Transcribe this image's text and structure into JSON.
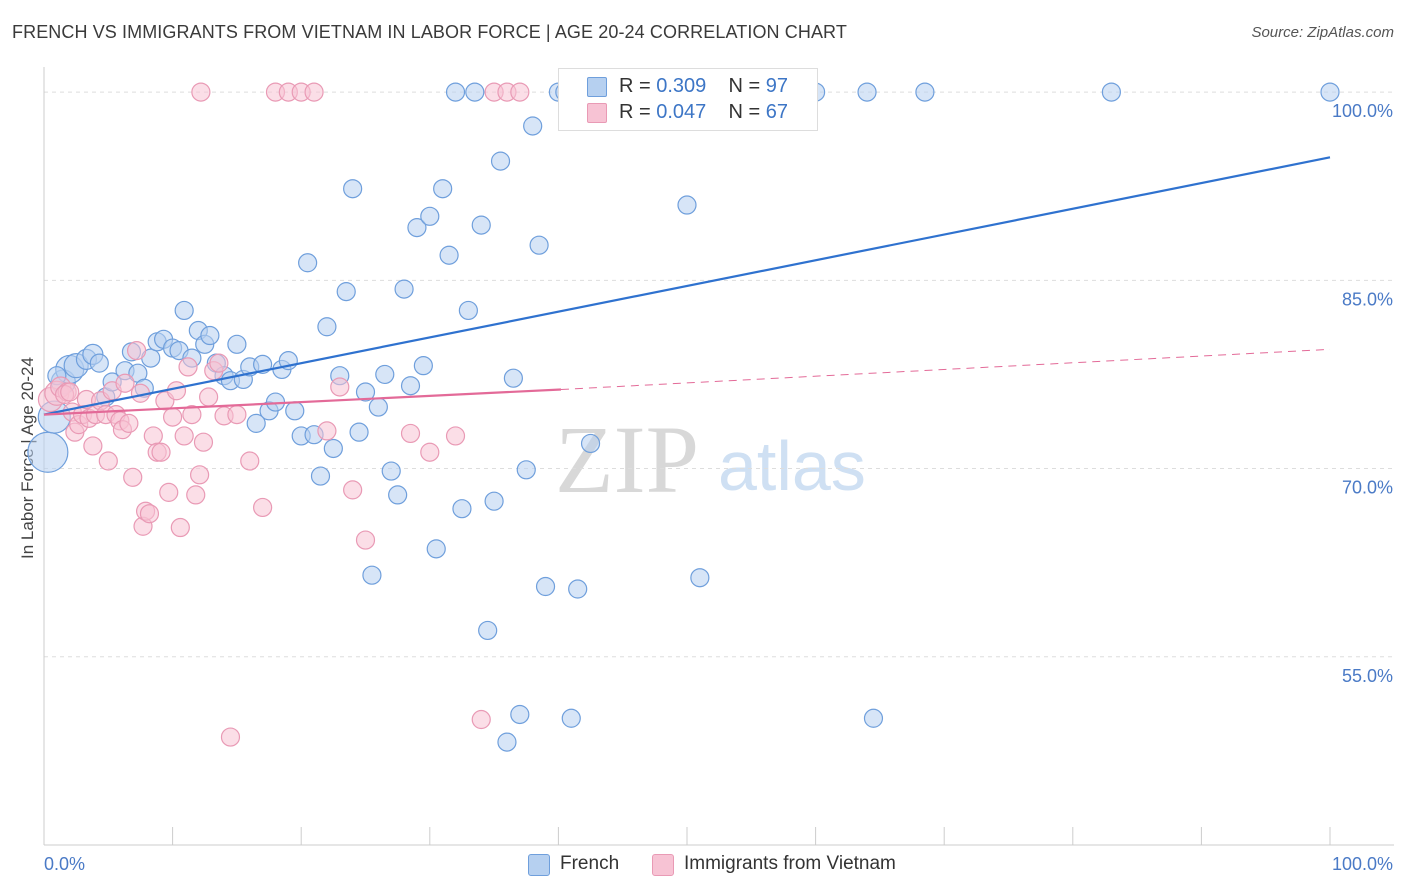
{
  "title": "FRENCH VS IMMIGRANTS FROM VIETNAM IN LABOR FORCE | AGE 20-24 CORRELATION CHART",
  "source": "Source: ZipAtlas.com",
  "watermark": {
    "zip": "ZIP",
    "atlas": "atlas"
  },
  "legend": {
    "french": {
      "r_label": "R = ",
      "r_value": "0.309",
      "n_label": "N = ",
      "n_value": "97"
    },
    "vietnam": {
      "r_label": "R = ",
      "r_value": "0.047",
      "n_label": "N = ",
      "n_value": "67"
    }
  },
  "bottom_legend": {
    "french": "French",
    "vietnam": "Immigrants from Vietnam"
  },
  "colors": {
    "french_fill": "#b6d0f0",
    "french_stroke": "#6f9fdc",
    "french_line": "#2f72cf",
    "vietnam_fill": "#f7c3d4",
    "vietnam_stroke": "#e99ab5",
    "vietnam_line": "#e36a98",
    "axis_label": "#4a7ac6",
    "grid": "#dddddd"
  },
  "chart_data": {
    "type": "scatter",
    "title": "FRENCH VS IMMIGRANTS FROM VIETNAM IN LABOR FORCE | AGE 20-24 CORRELATION CHART",
    "xlabel": "",
    "ylabel": "In Labor Force | Age 20-24",
    "xlim": [
      0,
      100
    ],
    "ylim": [
      40,
      102
    ],
    "x_tick_labels": [
      "0.0%",
      "100.0%"
    ],
    "y_ticks": [
      55,
      70,
      85,
      100
    ],
    "y_tick_labels": [
      "55.0%",
      "70.0%",
      "85.0%",
      "100.0%"
    ],
    "grid": true,
    "series": [
      {
        "name": "French",
        "color": "#6f9fdc",
        "trend": {
          "x": [
            0,
            100
          ],
          "y": [
            74.3,
            94.8
          ],
          "dashed_from": null
        },
        "points": [
          [
            0.3,
            71.3,
            20
          ],
          [
            0.8,
            74.1,
            16
          ],
          [
            1.5,
            76.9,
            12
          ],
          [
            2.0,
            77.9,
            14
          ],
          [
            2.5,
            78.2,
            12
          ],
          [
            3.3,
            78.7,
            10
          ],
          [
            3.8,
            79.1,
            10
          ],
          [
            4.3,
            78.4,
            9
          ],
          [
            4.8,
            75.7,
            9
          ],
          [
            5.3,
            76.9,
            9
          ],
          [
            6.3,
            77.8,
            9
          ],
          [
            6.8,
            79.3,
            9
          ],
          [
            7.3,
            77.6,
            9
          ],
          [
            7.8,
            76.4,
            9
          ],
          [
            8.3,
            78.8,
            9
          ],
          [
            8.8,
            80.1,
            9
          ],
          [
            9.3,
            80.3,
            9
          ],
          [
            10.0,
            79.6,
            9
          ],
          [
            10.5,
            79.4,
            9
          ],
          [
            10.9,
            82.6,
            9
          ],
          [
            11.5,
            78.8,
            9
          ],
          [
            12.0,
            81.0,
            9
          ],
          [
            12.5,
            79.9,
            9
          ],
          [
            12.9,
            80.6,
            9
          ],
          [
            13.4,
            78.4,
            9
          ],
          [
            14.0,
            77.4,
            9
          ],
          [
            14.5,
            77.0,
            9
          ],
          [
            15.0,
            79.9,
            9
          ],
          [
            15.5,
            77.1,
            9
          ],
          [
            16.0,
            78.1,
            9
          ],
          [
            16.5,
            73.6,
            9
          ],
          [
            17.0,
            78.3,
            9
          ],
          [
            17.5,
            74.6,
            9
          ],
          [
            18.0,
            75.3,
            9
          ],
          [
            18.5,
            77.9,
            9
          ],
          [
            19.0,
            78.6,
            9
          ],
          [
            19.5,
            74.6,
            9
          ],
          [
            20.0,
            72.6,
            9
          ],
          [
            20.5,
            86.4,
            9
          ],
          [
            21.0,
            72.7,
            9
          ],
          [
            21.5,
            69.4,
            9
          ],
          [
            22.0,
            81.3,
            9
          ],
          [
            22.5,
            71.6,
            9
          ],
          [
            23.0,
            77.4,
            9
          ],
          [
            23.5,
            84.1,
            9
          ],
          [
            24.0,
            92.3,
            9
          ],
          [
            24.5,
            72.9,
            9
          ],
          [
            25.0,
            76.1,
            9
          ],
          [
            25.5,
            61.5,
            9
          ],
          [
            26.0,
            74.9,
            9
          ],
          [
            26.5,
            77.5,
            9
          ],
          [
            27.0,
            69.8,
            9
          ],
          [
            27.5,
            67.9,
            9
          ],
          [
            28.0,
            84.3,
            9
          ],
          [
            28.5,
            76.6,
            9
          ],
          [
            29.0,
            89.2,
            9
          ],
          [
            29.5,
            78.2,
            9
          ],
          [
            30.0,
            90.1,
            9
          ],
          [
            30.5,
            63.6,
            9
          ],
          [
            31.0,
            92.3,
            9
          ],
          [
            31.5,
            87.0,
            9
          ],
          [
            32.0,
            100.0,
            9
          ],
          [
            32.5,
            66.8,
            9
          ],
          [
            33.0,
            82.6,
            9
          ],
          [
            33.5,
            100.0,
            9
          ],
          [
            34.0,
            89.4,
            9
          ],
          [
            34.5,
            57.1,
            9
          ],
          [
            35.0,
            67.4,
            9
          ],
          [
            35.5,
            94.5,
            9
          ],
          [
            36.0,
            48.2,
            9
          ],
          [
            36.5,
            77.2,
            9
          ],
          [
            37.0,
            50.4,
            9
          ],
          [
            37.5,
            69.9,
            9
          ],
          [
            38.0,
            97.3,
            9
          ],
          [
            38.5,
            87.8,
            9
          ],
          [
            39.0,
            60.6,
            9
          ],
          [
            40.0,
            100.0,
            9
          ],
          [
            40.5,
            100.0,
            9
          ],
          [
            41.0,
            50.1,
            9
          ],
          [
            41.5,
            60.4,
            9
          ],
          [
            42.0,
            100.0,
            9
          ],
          [
            42.5,
            72.0,
            9
          ],
          [
            43.0,
            100.0,
            9
          ],
          [
            45.0,
            100.0,
            9
          ],
          [
            50.0,
            91.0,
            9
          ],
          [
            51.0,
            61.3,
            9
          ],
          [
            52.0,
            100.0,
            9
          ],
          [
            56.0,
            100.0,
            9
          ],
          [
            60.0,
            100.0,
            9
          ],
          [
            64.0,
            100.0,
            9
          ],
          [
            64.5,
            50.1,
            9
          ],
          [
            68.5,
            100.0,
            9
          ],
          [
            83.0,
            100.0,
            9
          ],
          [
            100.0,
            100.0,
            9
          ],
          [
            1.0,
            77.4,
            9
          ]
        ]
      },
      {
        "name": "Immigrants from Vietnam",
        "color": "#e99ab5",
        "trend": {
          "x": [
            0,
            40.2
          ],
          "y": [
            74.3,
            76.3
          ],
          "dashed_to": [
            100,
            79.5
          ]
        },
        "points": [
          [
            0.5,
            75.5,
            12
          ],
          [
            1.0,
            76.0,
            12
          ],
          [
            1.3,
            76.5,
            10
          ],
          [
            1.8,
            76.1,
            9
          ],
          [
            2.2,
            74.5,
            9
          ],
          [
            2.4,
            72.9,
            9
          ],
          [
            2.7,
            73.5,
            9
          ],
          [
            3.0,
            74.3,
            9
          ],
          [
            3.3,
            75.5,
            9
          ],
          [
            3.5,
            74.0,
            9
          ],
          [
            3.8,
            71.8,
            9
          ],
          [
            4.0,
            74.3,
            9
          ],
          [
            4.4,
            75.4,
            9
          ],
          [
            4.8,
            74.3,
            9
          ],
          [
            5.0,
            70.6,
            9
          ],
          [
            5.3,
            76.2,
            9
          ],
          [
            5.6,
            74.3,
            9
          ],
          [
            5.9,
            73.8,
            9
          ],
          [
            6.1,
            73.1,
            9
          ],
          [
            6.3,
            76.8,
            9
          ],
          [
            6.6,
            73.6,
            9
          ],
          [
            6.9,
            69.3,
            9
          ],
          [
            7.2,
            79.4,
            9
          ],
          [
            7.5,
            76.0,
            9
          ],
          [
            7.7,
            65.4,
            9
          ],
          [
            7.9,
            66.6,
            9
          ],
          [
            8.2,
            66.4,
            9
          ],
          [
            8.5,
            72.6,
            9
          ],
          [
            8.8,
            71.3,
            9
          ],
          [
            9.1,
            71.3,
            9
          ],
          [
            9.4,
            75.4,
            9
          ],
          [
            9.7,
            68.1,
            9
          ],
          [
            10.0,
            74.1,
            9
          ],
          [
            10.3,
            76.2,
            9
          ],
          [
            10.6,
            65.3,
            9
          ],
          [
            10.9,
            72.6,
            9
          ],
          [
            11.2,
            78.1,
            9
          ],
          [
            11.5,
            74.3,
            9
          ],
          [
            11.8,
            67.9,
            9
          ],
          [
            12.1,
            69.5,
            9
          ],
          [
            12.4,
            72.1,
            9
          ],
          [
            12.8,
            75.7,
            9
          ],
          [
            13.2,
            77.8,
            9
          ],
          [
            13.6,
            78.4,
            9
          ],
          [
            14.0,
            74.2,
            9
          ],
          [
            14.5,
            48.6,
            9
          ],
          [
            15.0,
            74.3,
            9
          ],
          [
            16.0,
            70.6,
            9
          ],
          [
            17.0,
            66.9,
            9
          ],
          [
            18.0,
            100.0,
            9
          ],
          [
            19.0,
            100.0,
            9
          ],
          [
            20.0,
            100.0,
            9
          ],
          [
            21.0,
            100.0,
            9
          ],
          [
            22.0,
            73.0,
            9
          ],
          [
            23.0,
            76.5,
            9
          ],
          [
            24.0,
            68.3,
            9
          ],
          [
            25.0,
            64.3,
            9
          ],
          [
            28.5,
            72.8,
            9
          ],
          [
            30.0,
            71.3,
            9
          ],
          [
            32.0,
            72.6,
            9
          ],
          [
            34.0,
            50.0,
            9
          ],
          [
            35.0,
            100.0,
            9
          ],
          [
            36.0,
            100.0,
            9
          ],
          [
            37.0,
            100.0,
            9
          ],
          [
            1.6,
            75.9,
            9
          ],
          [
            2.0,
            76.1,
            9
          ],
          [
            12.2,
            100.0,
            9
          ]
        ]
      }
    ]
  }
}
